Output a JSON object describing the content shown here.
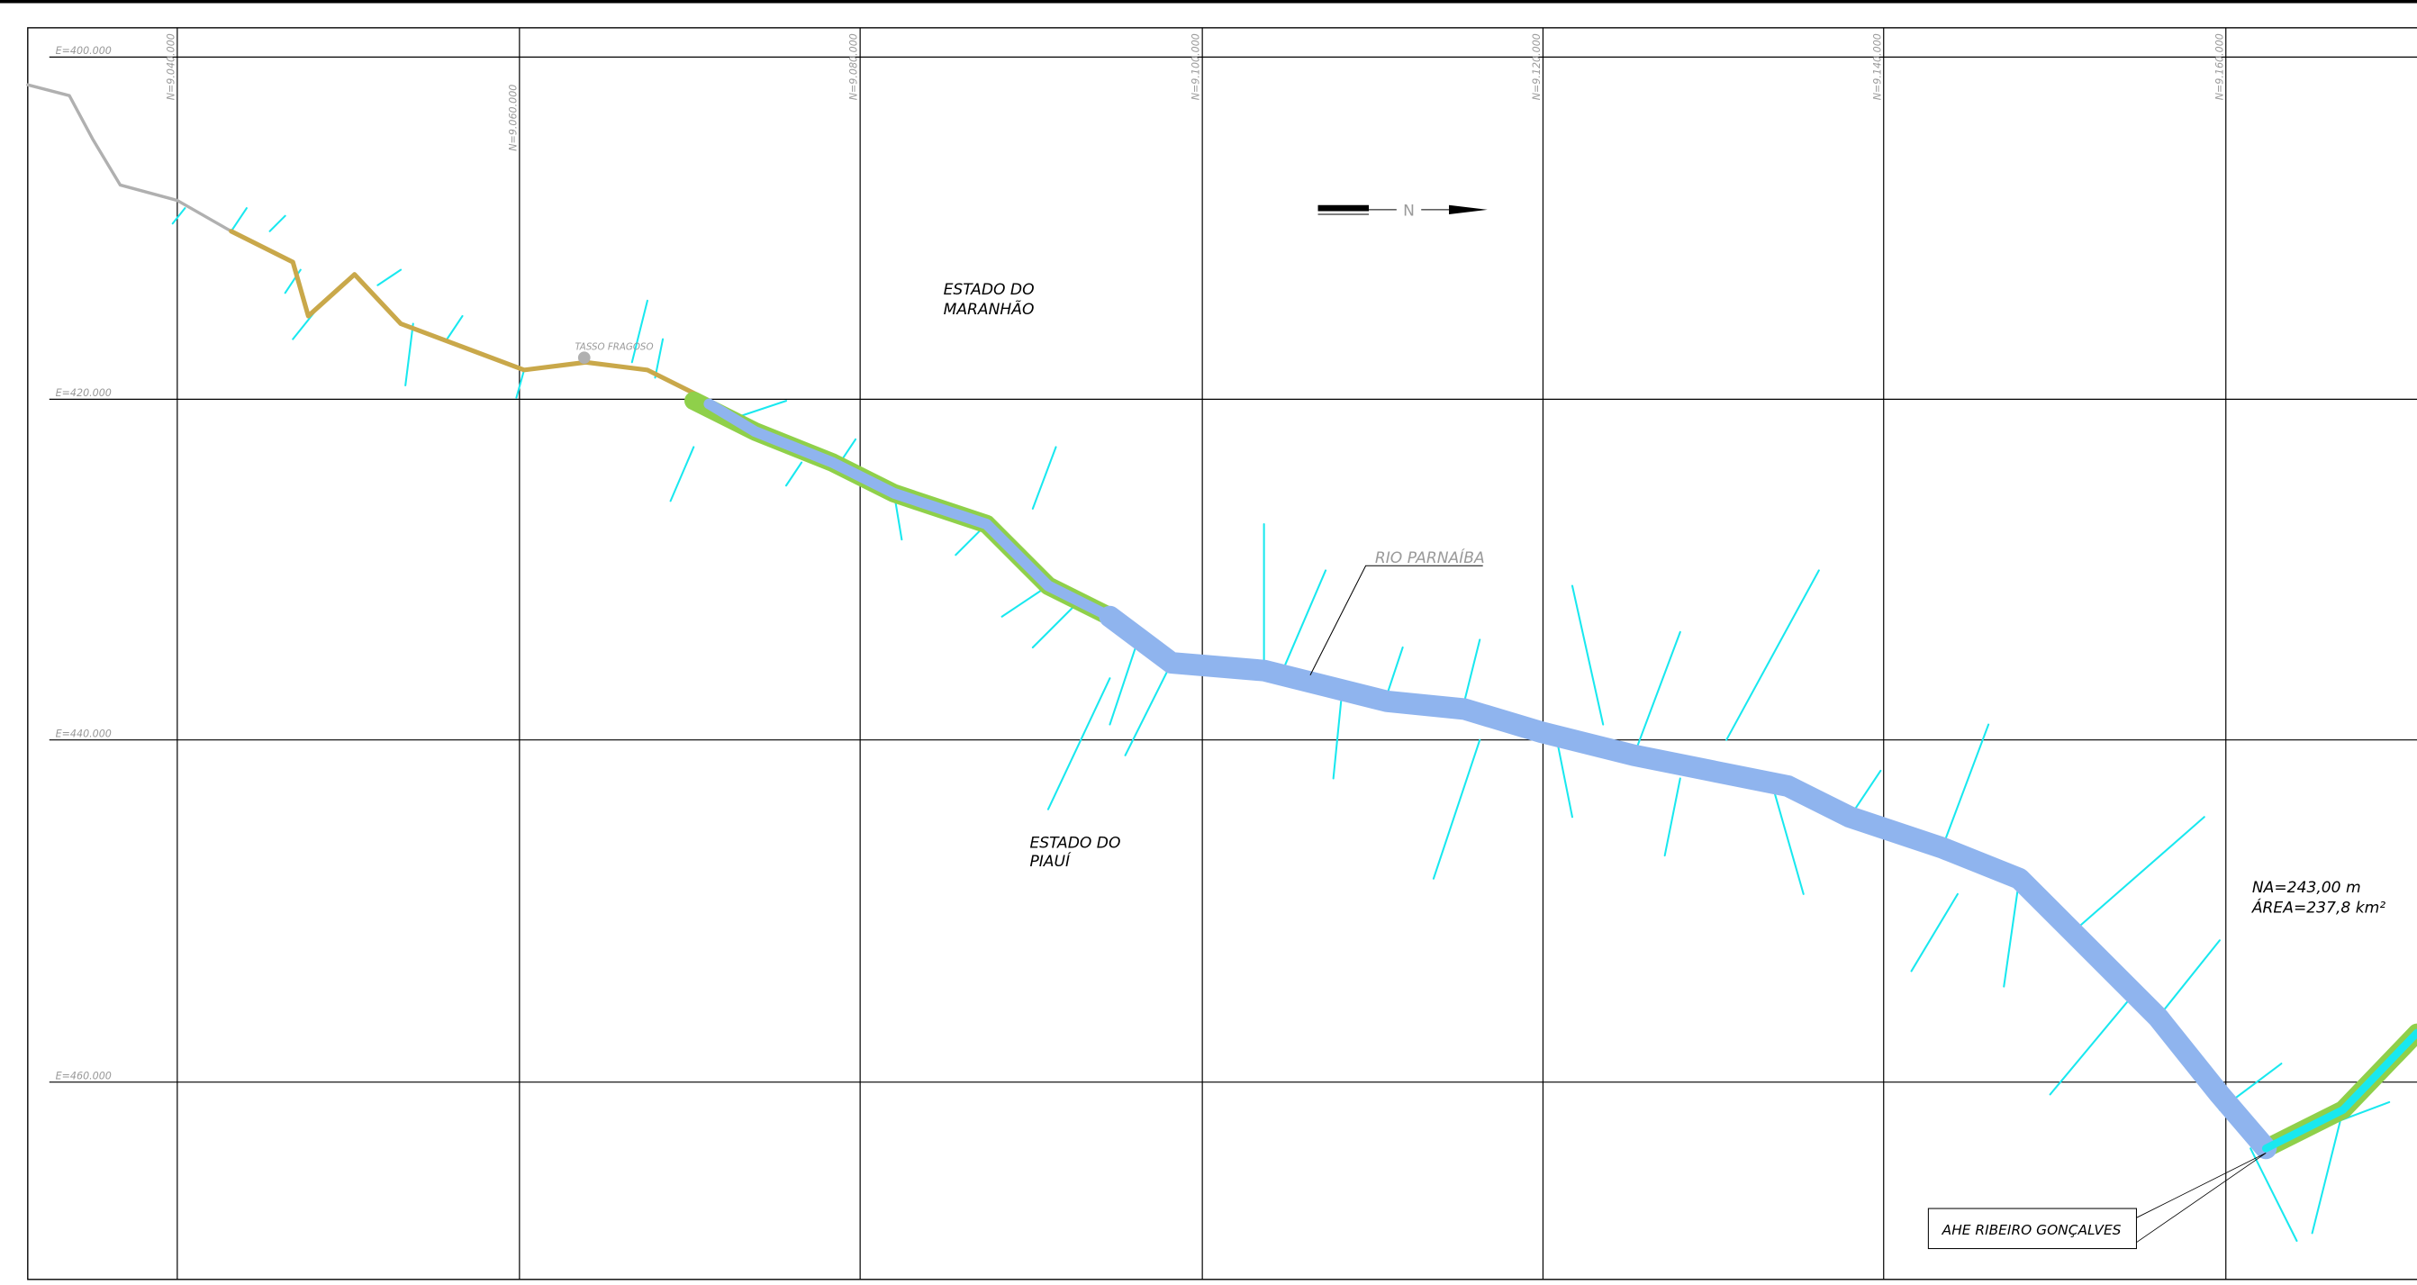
{
  "grid": {
    "eastings": [
      "E=400.000",
      "E=420.000",
      "E=440.000",
      "E=460.000"
    ],
    "northings": [
      "N=9.040.000",
      "N=9.060.000",
      "N=9.080.000",
      "N=9.100.000",
      "N=9.120.000",
      "N=9.140.000",
      "N=9.160.000"
    ]
  },
  "labels": {
    "maranhao": [
      "ESTADO DO",
      "MARANHÃO"
    ],
    "piaui": [
      "ESTADO DO",
      "PIAUÍ"
    ],
    "river": "RIO PARNAÍBA",
    "town": "TASSO FRAGOSO",
    "north": "N",
    "reservoir": [
      "NA=243,00 m",
      "ÁREA=237,8 km²"
    ],
    "dam": "AHE RIBEIRO GONÇALVES"
  }
}
